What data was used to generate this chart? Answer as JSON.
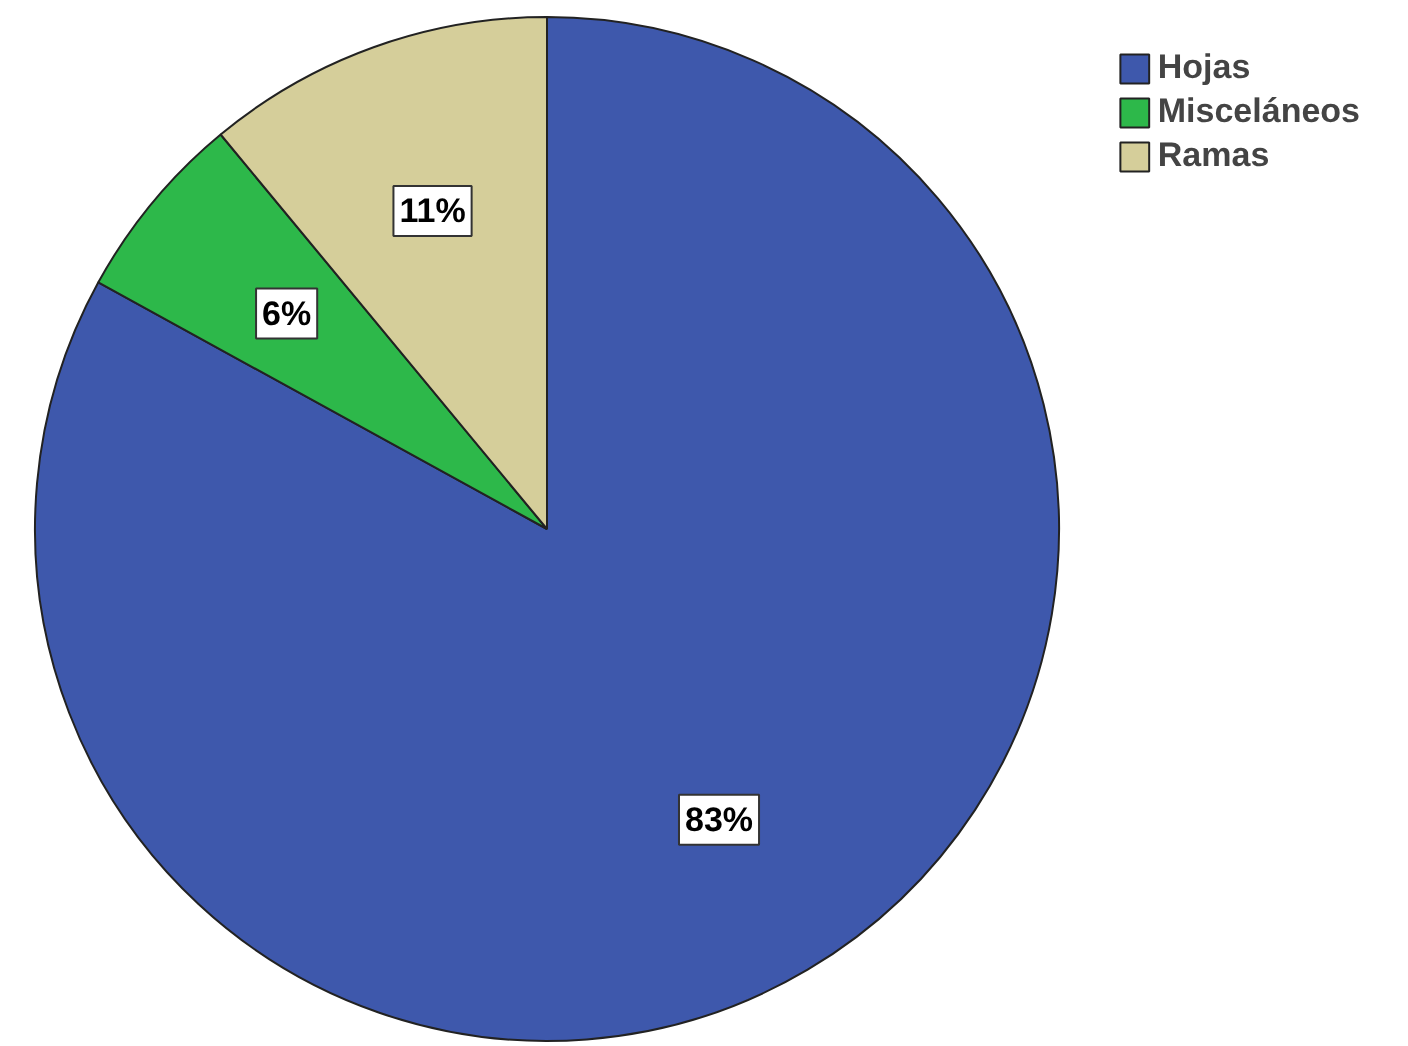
{
  "chart_data": {
    "type": "pie",
    "categories": [
      "Hojas",
      "Misceláneos",
      "Ramas"
    ],
    "values": [
      83,
      6,
      11
    ],
    "colors": [
      "#3e58ac",
      "#2db84a",
      "#d5ce9a"
    ],
    "value_labels": [
      "83%",
      "6%",
      "11%"
    ],
    "legend": "top right"
  }
}
